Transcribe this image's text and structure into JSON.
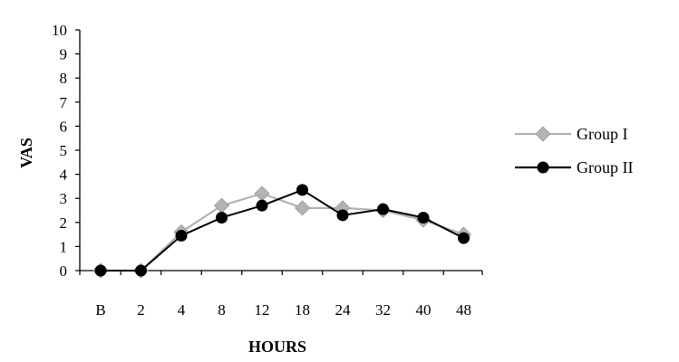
{
  "chart_data": {
    "type": "line",
    "title": "",
    "xlabel": "HOURS",
    "ylabel": "VAS",
    "categories": [
      "B",
      "2",
      "4",
      "8",
      "12",
      "18",
      "24",
      "32",
      "40",
      "48"
    ],
    "ylim": [
      0,
      10
    ],
    "yticks": [
      0,
      1,
      2,
      3,
      4,
      5,
      6,
      7,
      8,
      9,
      10
    ],
    "grid": false,
    "legend": "right",
    "series": [
      {
        "name": "Group I",
        "color": "#b3b3b3",
        "marker": "diamond",
        "values": [
          0,
          0,
          1.6,
          2.7,
          3.2,
          2.6,
          2.6,
          2.5,
          2.1,
          1.5
        ]
      },
      {
        "name": "Group II",
        "color": "#000000",
        "marker": "circle",
        "values": [
          0,
          0,
          1.45,
          2.2,
          2.7,
          3.35,
          2.3,
          2.55,
          2.2,
          1.35
        ]
      }
    ]
  }
}
